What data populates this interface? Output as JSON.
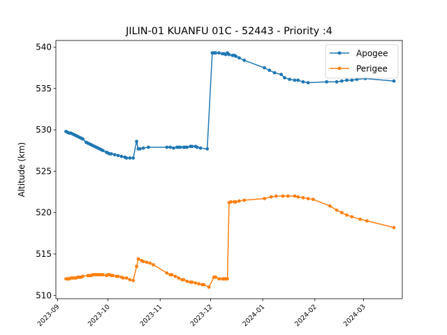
{
  "chart_data": {
    "type": "line",
    "title": "JILIN-01 KUANFU 01C - 52443 - Priority :4",
    "xlabel": "",
    "ylabel": "Altitude (km)",
    "ylim": [
      509.6,
      540.8
    ],
    "xlim": [
      "2023-08-31",
      "2024-03-24"
    ],
    "y_ticks": [
      510,
      515,
      520,
      525,
      530,
      535,
      540
    ],
    "x_ticks": [
      "2023-09",
      "2023-10",
      "2023-11",
      "2023-12",
      "2024-01",
      "2024-02",
      "2024-03"
    ],
    "grid": false,
    "legend_position": "top-right",
    "series": [
      {
        "name": "Apogee",
        "color": "#1f77b4",
        "points": [
          [
            "2023-09-06",
            529.8
          ],
          [
            "2023-09-07",
            529.7
          ],
          [
            "2023-09-08",
            529.6
          ],
          [
            "2023-09-09",
            529.6
          ],
          [
            "2023-09-10",
            529.5
          ],
          [
            "2023-09-11",
            529.4
          ],
          [
            "2023-09-12",
            529.3
          ],
          [
            "2023-09-13",
            529.2
          ],
          [
            "2023-09-14",
            529.1
          ],
          [
            "2023-09-15",
            529.0
          ],
          [
            "2023-09-16",
            528.9
          ],
          [
            "2023-09-18",
            528.5
          ],
          [
            "2023-09-19",
            528.4
          ],
          [
            "2023-09-20",
            528.3
          ],
          [
            "2023-09-21",
            528.2
          ],
          [
            "2023-09-22",
            528.1
          ],
          [
            "2023-09-23",
            528.0
          ],
          [
            "2023-09-24",
            527.9
          ],
          [
            "2023-09-25",
            527.8
          ],
          [
            "2023-09-26",
            527.7
          ],
          [
            "2023-09-27",
            527.6
          ],
          [
            "2023-09-28",
            527.5
          ],
          [
            "2023-09-30",
            527.3
          ],
          [
            "2023-10-01",
            527.2
          ],
          [
            "2023-10-02",
            527.1
          ],
          [
            "2023-10-03",
            527.1
          ],
          [
            "2023-10-05",
            527.0
          ],
          [
            "2023-10-07",
            526.9
          ],
          [
            "2023-10-09",
            526.8
          ],
          [
            "2023-10-11",
            526.7
          ],
          [
            "2023-10-12",
            526.6
          ],
          [
            "2023-10-14",
            526.6
          ],
          [
            "2023-10-16",
            526.6
          ],
          [
            "2023-10-18",
            528.6
          ],
          [
            "2023-10-19",
            527.7
          ],
          [
            "2023-10-20",
            527.7
          ],
          [
            "2023-10-22",
            527.8
          ],
          [
            "2023-10-25",
            527.9
          ],
          [
            "2023-11-05",
            527.9
          ],
          [
            "2023-11-07",
            527.9
          ],
          [
            "2023-11-09",
            527.8
          ],
          [
            "2023-11-11",
            527.9
          ],
          [
            "2023-11-12",
            527.9
          ],
          [
            "2023-11-13",
            527.9
          ],
          [
            "2023-11-15",
            527.9
          ],
          [
            "2023-11-16",
            527.9
          ],
          [
            "2023-11-17",
            527.9
          ],
          [
            "2023-11-19",
            528.0
          ],
          [
            "2023-11-20",
            528.0
          ],
          [
            "2023-11-22",
            528.0
          ],
          [
            "2023-11-23",
            527.9
          ],
          [
            "2023-11-25",
            527.8
          ],
          [
            "2023-11-29",
            527.7
          ],
          [
            "2023-12-02",
            539.3
          ],
          [
            "2023-12-03",
            539.3
          ],
          [
            "2023-12-04",
            539.3
          ],
          [
            "2023-12-06",
            539.3
          ],
          [
            "2023-12-08",
            539.2
          ],
          [
            "2023-12-09",
            539.2
          ],
          [
            "2023-12-10",
            539.1
          ],
          [
            "2023-12-11",
            539.3
          ],
          [
            "2023-12-12",
            539.1
          ],
          [
            "2023-12-14",
            539.0
          ],
          [
            "2023-12-15",
            539.0
          ],
          [
            "2023-12-16",
            538.9
          ],
          [
            "2023-12-18",
            538.7
          ],
          [
            "2023-12-21",
            538.4
          ],
          [
            "2024-01-02",
            537.5
          ],
          [
            "2024-01-05",
            537.2
          ],
          [
            "2024-01-08",
            536.9
          ],
          [
            "2024-01-12",
            536.7
          ],
          [
            "2024-01-14",
            536.3
          ],
          [
            "2024-01-17",
            536.1
          ],
          [
            "2024-01-20",
            536.0
          ],
          [
            "2024-01-22",
            536.0
          ],
          [
            "2024-01-25",
            535.8
          ],
          [
            "2024-01-28",
            535.7
          ],
          [
            "2024-02-08",
            535.8
          ],
          [
            "2024-02-14",
            535.8
          ],
          [
            "2024-02-17",
            535.9
          ],
          [
            "2024-02-20",
            536.0
          ],
          [
            "2024-02-23",
            536.0
          ],
          [
            "2024-02-26",
            536.1
          ],
          [
            "2024-03-02",
            536.2
          ],
          [
            "2024-03-19",
            535.9
          ]
        ]
      },
      {
        "name": "Perigee",
        "color": "#ff7f0e",
        "points": [
          [
            "2023-09-06",
            512.0
          ],
          [
            "2023-09-07",
            512.0
          ],
          [
            "2023-09-08",
            512.0
          ],
          [
            "2023-09-09",
            512.1
          ],
          [
            "2023-09-10",
            512.1
          ],
          [
            "2023-09-11",
            512.1
          ],
          [
            "2023-09-12",
            512.1
          ],
          [
            "2023-09-13",
            512.2
          ],
          [
            "2023-09-14",
            512.2
          ],
          [
            "2023-09-15",
            512.2
          ],
          [
            "2023-09-16",
            512.3
          ],
          [
            "2023-09-19",
            512.4
          ],
          [
            "2023-09-20",
            512.4
          ],
          [
            "2023-09-21",
            512.4
          ],
          [
            "2023-09-22",
            512.5
          ],
          [
            "2023-09-23",
            512.5
          ],
          [
            "2023-09-24",
            512.5
          ],
          [
            "2023-09-25",
            512.5
          ],
          [
            "2023-09-26",
            512.5
          ],
          [
            "2023-09-27",
            512.5
          ],
          [
            "2023-09-28",
            512.5
          ],
          [
            "2023-09-30",
            512.4
          ],
          [
            "2023-10-01",
            512.5
          ],
          [
            "2023-10-02",
            512.5
          ],
          [
            "2023-10-03",
            512.4
          ],
          [
            "2023-10-04",
            512.4
          ],
          [
            "2023-10-06",
            512.3
          ],
          [
            "2023-10-07",
            512.3
          ],
          [
            "2023-10-09",
            512.2
          ],
          [
            "2023-10-10",
            512.1
          ],
          [
            "2023-10-12",
            512.1
          ],
          [
            "2023-10-14",
            511.9
          ],
          [
            "2023-10-16",
            511.8
          ],
          [
            "2023-10-18",
            513.5
          ],
          [
            "2023-10-19",
            514.4
          ],
          [
            "2023-10-21",
            514.2
          ],
          [
            "2023-10-22",
            514.1
          ],
          [
            "2023-10-24",
            514.0
          ],
          [
            "2023-10-26",
            513.9
          ],
          [
            "2023-10-28",
            513.7
          ],
          [
            "2023-11-05",
            512.7
          ],
          [
            "2023-11-07",
            512.5
          ],
          [
            "2023-11-08",
            512.5
          ],
          [
            "2023-11-10",
            512.3
          ],
          [
            "2023-11-12",
            512.1
          ],
          [
            "2023-11-14",
            511.9
          ],
          [
            "2023-11-15",
            511.9
          ],
          [
            "2023-11-17",
            511.7
          ],
          [
            "2023-11-19",
            511.6
          ],
          [
            "2023-11-20",
            511.6
          ],
          [
            "2023-11-22",
            511.5
          ],
          [
            "2023-11-24",
            511.4
          ],
          [
            "2023-11-26",
            511.3
          ],
          [
            "2023-11-27",
            511.3
          ],
          [
            "2023-11-30",
            511.0
          ],
          [
            "2023-12-03",
            512.2
          ],
          [
            "2023-12-04",
            512.2
          ],
          [
            "2023-12-06",
            512.0
          ],
          [
            "2023-12-08",
            512.0
          ],
          [
            "2023-12-09",
            512.0
          ],
          [
            "2023-12-10",
            512.0
          ],
          [
            "2023-12-11",
            512.0
          ],
          [
            "2023-12-12",
            521.2
          ],
          [
            "2023-12-13",
            521.3
          ],
          [
            "2023-12-15",
            521.3
          ],
          [
            "2023-12-16",
            521.3
          ],
          [
            "2023-12-18",
            521.4
          ],
          [
            "2023-12-21",
            521.5
          ],
          [
            "2024-01-02",
            521.7
          ],
          [
            "2024-01-06",
            521.9
          ],
          [
            "2024-01-09",
            522.0
          ],
          [
            "2024-01-13",
            522.0
          ],
          [
            "2024-01-16",
            522.0
          ],
          [
            "2024-01-20",
            522.0
          ],
          [
            "2024-01-22",
            521.9
          ],
          [
            "2024-01-25",
            521.8
          ],
          [
            "2024-01-28",
            521.7
          ],
          [
            "2024-01-31",
            521.6
          ],
          [
            "2024-02-10",
            520.8
          ],
          [
            "2024-02-14",
            520.3
          ],
          [
            "2024-02-17",
            520.0
          ],
          [
            "2024-02-20",
            519.7
          ],
          [
            "2024-02-23",
            519.5
          ],
          [
            "2024-02-28",
            519.2
          ],
          [
            "2024-03-03",
            519.0
          ],
          [
            "2024-03-19",
            518.2
          ]
        ]
      }
    ]
  }
}
